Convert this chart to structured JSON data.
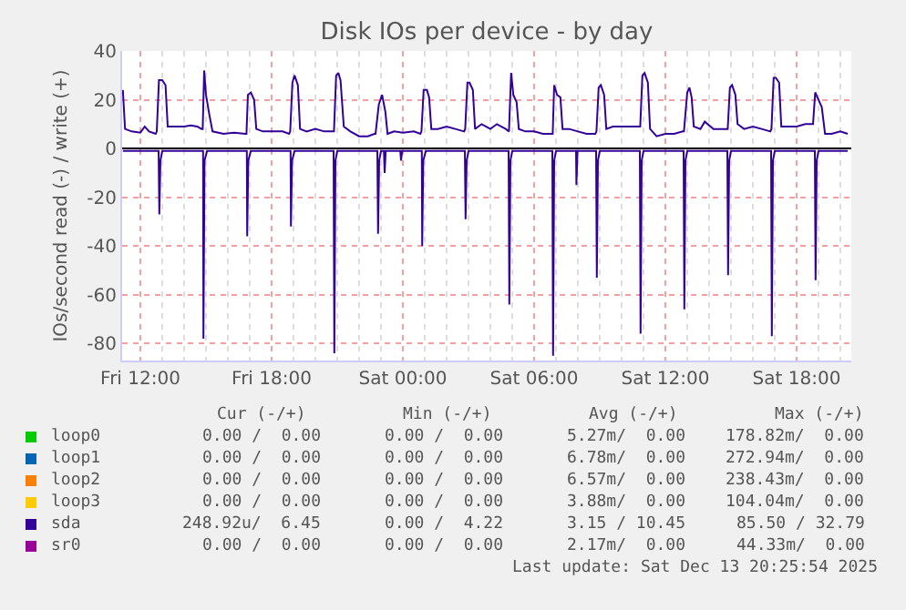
{
  "chart_data": {
    "type": "line",
    "title": "Disk IOs per device - by day",
    "ylabel": "IOs/second read (-) / write (+)",
    "xlim": [
      "2025-12-12T11:10",
      "2025-12-13T20:30"
    ],
    "xticks": [
      {
        "value": "2025-12-12T12:00",
        "label": "Fri 12:00"
      },
      {
        "value": "2025-12-12T18:00",
        "label": "Fri 18:00"
      },
      {
        "value": "2025-12-13T00:00",
        "label": "Sat 00:00"
      },
      {
        "value": "2025-12-13T06:00",
        "label": "Sat 06:00"
      },
      {
        "value": "2025-12-13T12:00",
        "label": "Sat 12:00"
      },
      {
        "value": "2025-12-13T18:00",
        "label": "Sat 18:00"
      }
    ],
    "ylim": [
      -87,
      40
    ],
    "yticks": [
      -80,
      -60,
      -40,
      -20,
      0,
      20,
      40
    ],
    "grid": true,
    "legend": "bottom",
    "marker": "none",
    "line_style": "solid",
    "series": [
      {
        "name": "loop0",
        "color": "#00cc00"
      },
      {
        "name": "loop1",
        "color": "#0066b3"
      },
      {
        "name": "loop2",
        "color": "#ff8000"
      },
      {
        "name": "loop3",
        "color": "#ffcc00"
      },
      {
        "name": "sda",
        "color": "#330099",
        "x": [
          "2025-12-12T11:12",
          "2025-12-12T11:18",
          "2025-12-12T11:36",
          "2025-12-12T12:00",
          "2025-12-12T12:12",
          "2025-12-12T12:24",
          "2025-12-12T12:42",
          "2025-12-12T12:45",
          "2025-12-12T12:51",
          "2025-12-12T13:00",
          "2025-12-12T13:09",
          "2025-12-12T13:15",
          "2025-12-12T13:36",
          "2025-12-12T14:00",
          "2025-12-12T14:18",
          "2025-12-12T14:36",
          "2025-12-12T14:48",
          "2025-12-12T14:51",
          "2025-12-12T14:55",
          "2025-12-12T15:00",
          "2025-12-12T15:09",
          "2025-12-12T15:18",
          "2025-12-12T15:48",
          "2025-12-12T16:18",
          "2025-12-12T16:48",
          "2025-12-12T16:51",
          "2025-12-12T16:55",
          "2025-12-12T17:03",
          "2025-12-12T17:12",
          "2025-12-12T17:18",
          "2025-12-12T17:36",
          "2025-12-12T18:00",
          "2025-12-12T18:30",
          "2025-12-12T18:48",
          "2025-12-12T18:51",
          "2025-12-12T18:57",
          "2025-12-12T19:03",
          "2025-12-12T19:12",
          "2025-12-12T19:18",
          "2025-12-12T19:36",
          "2025-12-12T20:00",
          "2025-12-12T20:24",
          "2025-12-12T20:48",
          "2025-12-12T20:51",
          "2025-12-12T20:57",
          "2025-12-12T21:03",
          "2025-12-12T21:09",
          "2025-12-12T21:18",
          "2025-12-12T21:36",
          "2025-12-12T22:00",
          "2025-12-12T22:24",
          "2025-12-12T22:42",
          "2025-12-12T22:45",
          "2025-12-12T22:54",
          "2025-12-12T23:03",
          "2025-12-12T23:12",
          "2025-12-12T23:18",
          "2025-12-12T23:36",
          "2025-12-13T00:00",
          "2025-12-13T00:30",
          "2025-12-13T00:48",
          "2025-12-13T00:51",
          "2025-12-13T00:57",
          "2025-12-13T01:06",
          "2025-12-13T01:12",
          "2025-12-13T01:18",
          "2025-12-13T01:36",
          "2025-12-13T02:00",
          "2025-12-13T02:24",
          "2025-12-13T02:48",
          "2025-12-13T02:51",
          "2025-12-13T02:57",
          "2025-12-13T03:03",
          "2025-12-13T03:12",
          "2025-12-13T03:18",
          "2025-12-13T03:36",
          "2025-12-13T04:00",
          "2025-12-13T04:18",
          "2025-12-13T04:42",
          "2025-12-13T04:51",
          "2025-12-13T04:57",
          "2025-12-13T05:03",
          "2025-12-13T05:12",
          "2025-12-13T05:18",
          "2025-12-13T05:36",
          "2025-12-13T06:00",
          "2025-12-13T06:24",
          "2025-12-13T06:48",
          "2025-12-13T06:51",
          "2025-12-13T06:55",
          "2025-12-13T07:03",
          "2025-12-13T07:12",
          "2025-12-13T07:18",
          "2025-12-13T07:36",
          "2025-12-13T08:00",
          "2025-12-13T08:24",
          "2025-12-13T08:48",
          "2025-12-13T08:51",
          "2025-12-13T08:57",
          "2025-12-13T09:03",
          "2025-12-13T09:12",
          "2025-12-13T09:18",
          "2025-12-13T09:36",
          "2025-12-13T10:00",
          "2025-12-13T10:24",
          "2025-12-13T10:48",
          "2025-12-13T10:51",
          "2025-12-13T10:57",
          "2025-12-13T11:03",
          "2025-12-13T11:12",
          "2025-12-13T11:18",
          "2025-12-13T11:36",
          "2025-12-13T12:00",
          "2025-12-13T12:24",
          "2025-12-13T12:48",
          "2025-12-13T12:51",
          "2025-12-13T13:00",
          "2025-12-13T13:06",
          "2025-12-13T13:12",
          "2025-12-13T13:18",
          "2025-12-13T13:36",
          "2025-12-13T13:48",
          "2025-12-13T14:12",
          "2025-12-13T14:48",
          "2025-12-13T14:51",
          "2025-12-13T14:57",
          "2025-12-13T15:03",
          "2025-12-13T15:12",
          "2025-12-13T15:18",
          "2025-12-13T15:36",
          "2025-12-13T16:00",
          "2025-12-13T16:24",
          "2025-12-13T16:48",
          "2025-12-13T16:51",
          "2025-12-13T16:57",
          "2025-12-13T17:03",
          "2025-12-13T17:12",
          "2025-12-13T17:18",
          "2025-12-13T17:36",
          "2025-12-13T18:00",
          "2025-12-13T18:24",
          "2025-12-13T18:42",
          "2025-12-13T18:45",
          "2025-12-13T18:51",
          "2025-12-13T19:00",
          "2025-12-13T19:09",
          "2025-12-13T19:18",
          "2025-12-13T19:36",
          "2025-12-13T20:00",
          "2025-12-13T20:20"
        ],
        "values": [
          24,
          8,
          7,
          6.5,
          9,
          7,
          6,
          7,
          28,
          28,
          26,
          9,
          9,
          9,
          9.5,
          9,
          8,
          8,
          32,
          22,
          14,
          7,
          6,
          6.5,
          6,
          6,
          22,
          23,
          20,
          8,
          7,
          7,
          7,
          6,
          7,
          27,
          30,
          26,
          8,
          7,
          8,
          7,
          7,
          7,
          30,
          31,
          28,
          9,
          7,
          5,
          5,
          6,
          6,
          18,
          22,
          15,
          6,
          7,
          6.5,
          7,
          6,
          7,
          24,
          24,
          21,
          8,
          8,
          9,
          8,
          7,
          8,
          27,
          27,
          24,
          8,
          10,
          8,
          10,
          8,
          7,
          31,
          22,
          19,
          8,
          7,
          7,
          6,
          6,
          6,
          26,
          22,
          21,
          8,
          8,
          7,
          6,
          6,
          7,
          25,
          26,
          22,
          8,
          9,
          9,
          9,
          9,
          9,
          30,
          31,
          27,
          8,
          5,
          6,
          6,
          7,
          7,
          23,
          25,
          21,
          9,
          8,
          11,
          8,
          8,
          8,
          25,
          26,
          22,
          10,
          8,
          9,
          8,
          7,
          8,
          29,
          29,
          27,
          9,
          9,
          9,
          10,
          10,
          10,
          23,
          20,
          17,
          6,
          6,
          7,
          6
        ]
      },
      {
        "color": "#330099",
        "x": [
          "2025-12-12T11:12",
          "2025-12-12T12:50",
          "2025-12-12T12:52",
          "2025-12-12T12:55",
          "2025-12-12T13:00",
          "2025-12-12T14:52",
          "2025-12-12T14:53",
          "2025-12-12T14:56",
          "2025-12-12T15:03",
          "2025-12-12T16:52",
          "2025-12-12T16:53",
          "2025-12-12T16:56",
          "2025-12-12T17:03",
          "2025-12-12T18:52",
          "2025-12-12T18:53",
          "2025-12-12T18:56",
          "2025-12-12T19:03",
          "2025-12-12T20:50",
          "2025-12-12T20:52",
          "2025-12-12T20:55",
          "2025-12-12T21:00",
          "2025-12-12T22:50",
          "2025-12-12T22:52",
          "2025-12-12T22:55",
          "2025-12-12T23:00",
          "2025-12-12T23:08",
          "2025-12-12T23:10",
          "2025-12-12T23:13",
          "2025-12-12T23:53",
          "2025-12-12T23:55",
          "2025-12-12T23:58",
          "2025-12-13T00:52",
          "2025-12-13T00:53",
          "2025-12-13T00:56",
          "2025-12-13T01:03",
          "2025-12-13T02:50",
          "2025-12-13T02:52",
          "2025-12-13T02:55",
          "2025-12-13T03:00",
          "2025-12-13T04:50",
          "2025-12-13T04:52",
          "2025-12-13T04:55",
          "2025-12-13T05:00",
          "2025-12-13T06:50",
          "2025-12-13T06:52",
          "2025-12-13T06:55",
          "2025-12-13T07:00",
          "2025-12-13T07:55",
          "2025-12-13T07:56",
          "2025-12-13T07:59",
          "2025-12-13T08:50",
          "2025-12-13T08:52",
          "2025-12-13T08:55",
          "2025-12-13T09:00",
          "2025-12-13T10:50",
          "2025-12-13T10:52",
          "2025-12-13T10:55",
          "2025-12-13T11:00",
          "2025-12-13T12:50",
          "2025-12-13T12:52",
          "2025-12-13T12:55",
          "2025-12-13T13:00",
          "2025-12-13T14:50",
          "2025-12-13T14:52",
          "2025-12-13T14:55",
          "2025-12-13T15:00",
          "2025-12-13T16:50",
          "2025-12-13T16:52",
          "2025-12-13T16:55",
          "2025-12-13T17:00",
          "2025-12-13T18:50",
          "2025-12-13T18:52",
          "2025-12-13T18:55",
          "2025-12-13T19:00",
          "2025-12-13T20:20"
        ],
        "values": [
          -1,
          -1,
          -27,
          -5,
          -1,
          -1,
          -78,
          -5,
          -1,
          -1,
          -36,
          -5,
          -1,
          -1,
          -32,
          -5,
          -1,
          -1,
          -84,
          -5,
          -1,
          -1,
          -35,
          -5,
          -1,
          -1,
          -10,
          -1,
          -1,
          -5,
          -1,
          -1,
          -40,
          -5,
          -1,
          -1,
          -29,
          -5,
          -1,
          -1,
          -64,
          -5,
          -1,
          -1,
          -85,
          -5,
          -1,
          -1,
          -15,
          -1,
          -1,
          -53,
          -5,
          -1,
          -1,
          -76,
          -5,
          -1,
          -1,
          -66,
          -5,
          -1,
          -1,
          -52,
          -5,
          -1,
          -1,
          -77,
          -5,
          -1,
          -1,
          -54,
          -5,
          -1,
          -1
        ]
      },
      {
        "name": "sr0",
        "color": "#990099"
      }
    ],
    "ref_lines": [
      {
        "axis": "y",
        "value": 0,
        "color": "#000000"
      }
    ],
    "annotations": [
      "Cur (-/+)",
      "Min (-/+)",
      "Avg (-/+)",
      "Max (-/+)",
      "0.00 /  0.00",
      "0.00 /  0.00",
      "5.27m/  0.00",
      "178.82m/  0.00",
      "0.00 /  0.00",
      "0.00 /  0.00",
      "6.78m/  0.00",
      "272.94m/  0.00",
      "0.00 /  0.00",
      "0.00 /  0.00",
      "6.57m/  0.00",
      "238.43m/  0.00",
      "0.00 /  0.00",
      "0.00 /  0.00",
      "3.88m/  0.00",
      "104.04m/  0.00",
      "248.92u/  6.45",
      "0.00 /  4.22",
      "3.15 / 10.45",
      "85.50 / 32.79",
      "0.00 /  0.00",
      "0.00 /  0.00",
      "2.17m/  0.00",
      "44.33m/  0.00",
      "Last update: Sat Dec 13 20:25:54 2025"
    ]
  }
}
